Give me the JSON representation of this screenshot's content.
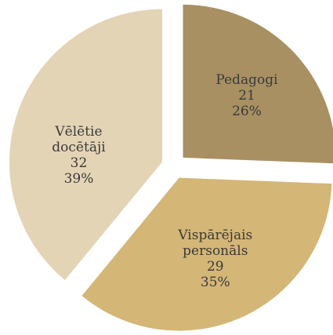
{
  "chart_data": {
    "type": "pie",
    "categories": [
      "Pedagogi",
      "Vispārējais personāls",
      "Vēlētie docētāji"
    ],
    "values": [
      21,
      29,
      32
    ],
    "percent_labels": [
      "26%",
      "35%",
      "39%"
    ],
    "colors": [
      "#a89062",
      "#d4b676",
      "#e4d4b6"
    ]
  }
}
